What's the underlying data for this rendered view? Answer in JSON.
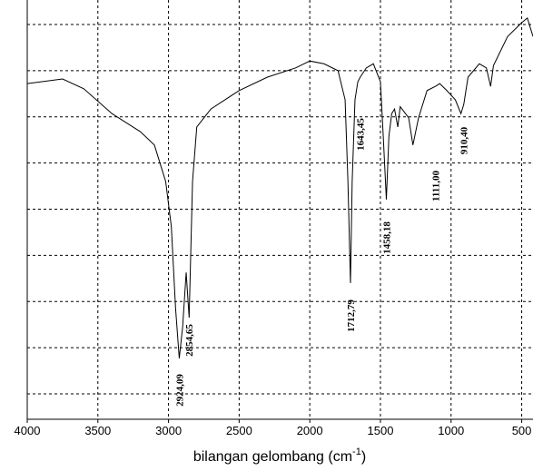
{
  "chart_data": {
    "type": "line",
    "x_label_parts": [
      "bilangan gelombang (cm",
      "-1",
      ")"
    ],
    "xlim": [
      4000,
      420
    ],
    "xticks": [
      4000,
      3500,
      3000,
      2500,
      2000,
      1500,
      1000,
      500
    ],
    "ylim": [
      -0.5,
      90
    ],
    "yticks": [
      5,
      15,
      25,
      35,
      45,
      55,
      65,
      75,
      85
    ],
    "grid": true,
    "series": [
      {
        "color": "#000000",
        "x": [
          4000,
          3750,
          3600,
          3400,
          3200,
          3100,
          3020,
          2980,
          2950,
          2924,
          2900,
          2875,
          2854,
          2830,
          2800,
          2700,
          2500,
          2300,
          2100,
          2000,
          1900,
          1800,
          1750,
          1730,
          1712,
          1700,
          1680,
          1660,
          1643,
          1600,
          1550,
          1500,
          1480,
          1458,
          1440,
          1420,
          1400,
          1377,
          1360,
          1300,
          1270,
          1230,
          1170,
          1111,
          1080,
          1030,
          970,
          930,
          910,
          880,
          800,
          750,
          720,
          700,
          600,
          500,
          460,
          420
        ],
        "values": [
          72.2,
          73.2,
          71.1,
          65.7,
          61.8,
          58.9,
          51,
          41.2,
          23.5,
          12.7,
          19.5,
          31.3,
          21.5,
          51,
          62.8,
          66.7,
          70.7,
          73.6,
          75.6,
          77.1,
          76.5,
          75,
          68.7,
          51,
          29,
          51,
          68.7,
          72.6,
          73.6,
          75.6,
          76.5,
          72.6,
          60.8,
          47.1,
          60.8,
          65.7,
          66.7,
          62.8,
          67.2,
          64.8,
          58.9,
          64.8,
          70.7,
          71.6,
          72.2,
          70.7,
          68.7,
          65.7,
          67.7,
          73.6,
          76.5,
          75.6,
          71.6,
          76.1,
          82.4,
          85.4,
          86.4,
          82.4
        ]
      }
    ],
    "annotations": [
      {
        "text": "2924,09",
        "x": 2924.09
      },
      {
        "text": "2854,65",
        "x": 2854.65
      },
      {
        "text": "1712,79",
        "x": 1712.79
      },
      {
        "text": "1643,45",
        "x": 1643.45
      },
      {
        "text": "1458,18",
        "x": 1458.18
      },
      {
        "text": "1111,00",
        "x": 1111.0
      },
      {
        "text": "910,40",
        "x": 910.4
      }
    ]
  }
}
